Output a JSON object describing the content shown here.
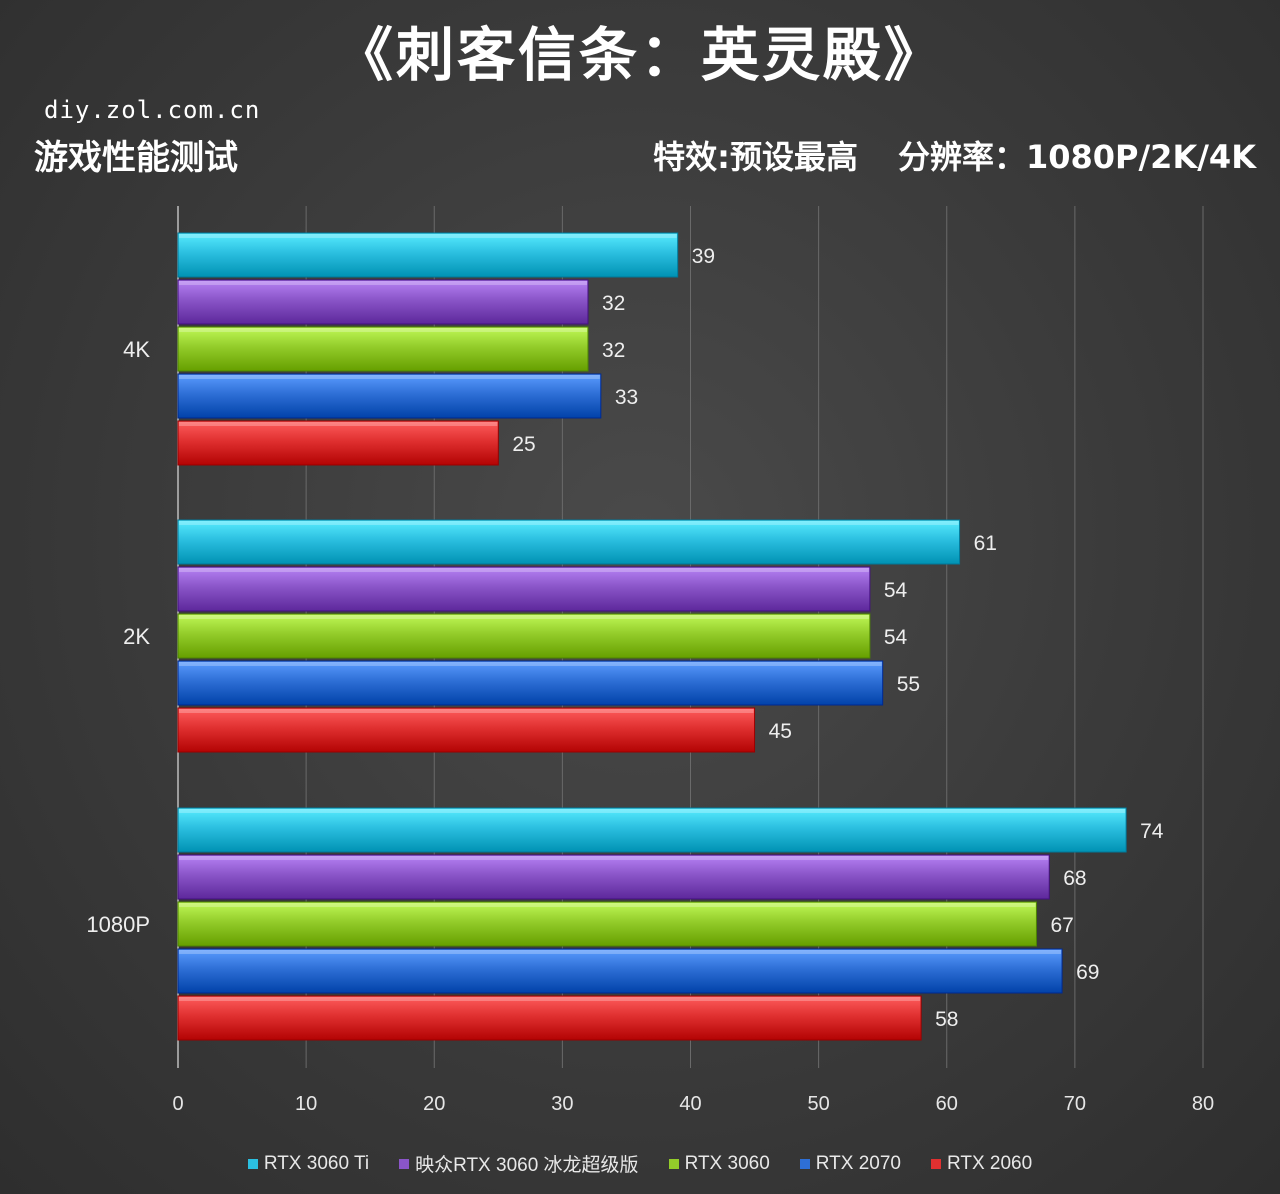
{
  "header": {
    "title": "《刺客信条：英灵殿》",
    "site": "diy.zol.com.cn",
    "subtitle_left": "游戏性能测试",
    "subtitle_effect": "特效:预设最高",
    "subtitle_resolution": "分辨率：1080P/2K/4K"
  },
  "chart_data": {
    "type": "bar",
    "orientation": "horizontal",
    "categories": [
      "4K",
      "2K",
      "1080P"
    ],
    "series": [
      {
        "name": "RTX 3060 Ti",
        "color": "#2bbfe0",
        "values": [
          39,
          61,
          74
        ]
      },
      {
        "name": "映众RTX 3060 冰龙超级版",
        "color": "#8a55c8",
        "values": [
          32,
          54,
          68
        ]
      },
      {
        "name": "RTX 3060",
        "color": "#93cc2a",
        "values": [
          32,
          54,
          67
        ]
      },
      {
        "name": "RTX 2070",
        "color": "#2e6fd6",
        "values": [
          33,
          55,
          69
        ]
      },
      {
        "name": "RTX 2060",
        "color": "#e03030",
        "values": [
          25,
          45,
          58
        ]
      }
    ],
    "xlim": [
      0,
      80
    ],
    "xticks": [
      0,
      10,
      20,
      30,
      40,
      50,
      60,
      70,
      80
    ],
    "grid": true,
    "legend_position": "bottom"
  }
}
